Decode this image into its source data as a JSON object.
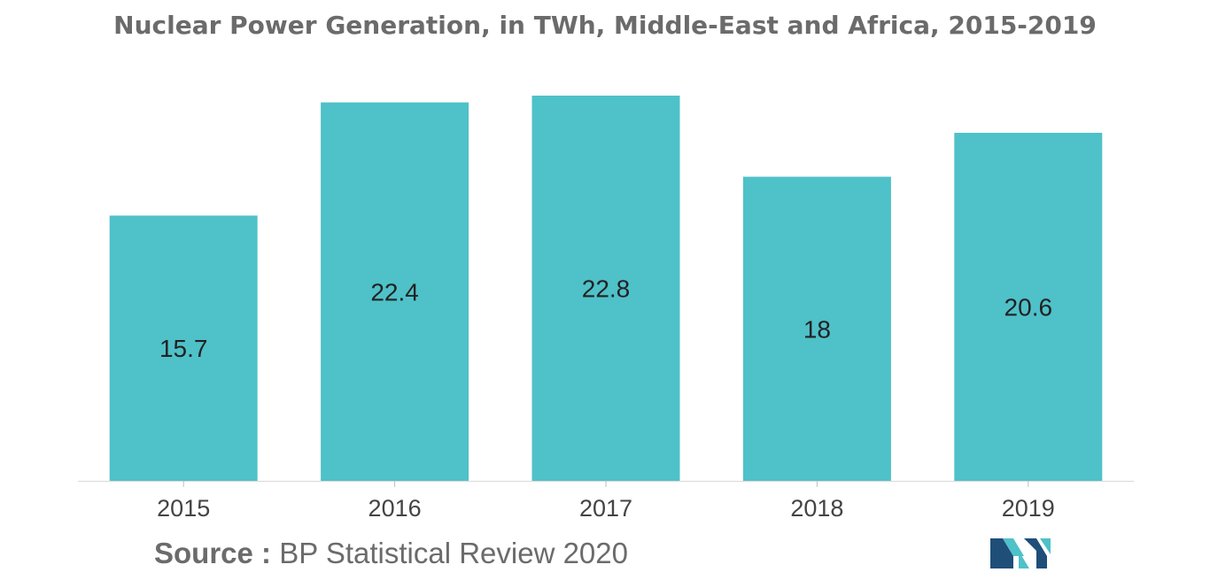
{
  "chart_data": {
    "type": "bar",
    "title": "Nuclear Power Generation, in TWh, Middle-East and Africa, 2015-2019",
    "categories": [
      "2015",
      "2016",
      "2017",
      "2018",
      "2019"
    ],
    "values": [
      15.7,
      22.4,
      22.8,
      18,
      20.6
    ],
    "value_labels": [
      "15.7",
      "22.4",
      "22.8",
      "18",
      "20.6"
    ],
    "xlabel": "",
    "ylabel": "",
    "ylim": [
      0,
      22.8
    ],
    "grid": false,
    "legend": "none",
    "bar_color": "#4fc1c9"
  },
  "source": {
    "label": "Source :",
    "text": "BP Statistical Review 2020"
  },
  "logo": {
    "icon": "mordor-intelligence-logo",
    "colors": [
      "#1f4e79",
      "#4fc1c9"
    ]
  }
}
